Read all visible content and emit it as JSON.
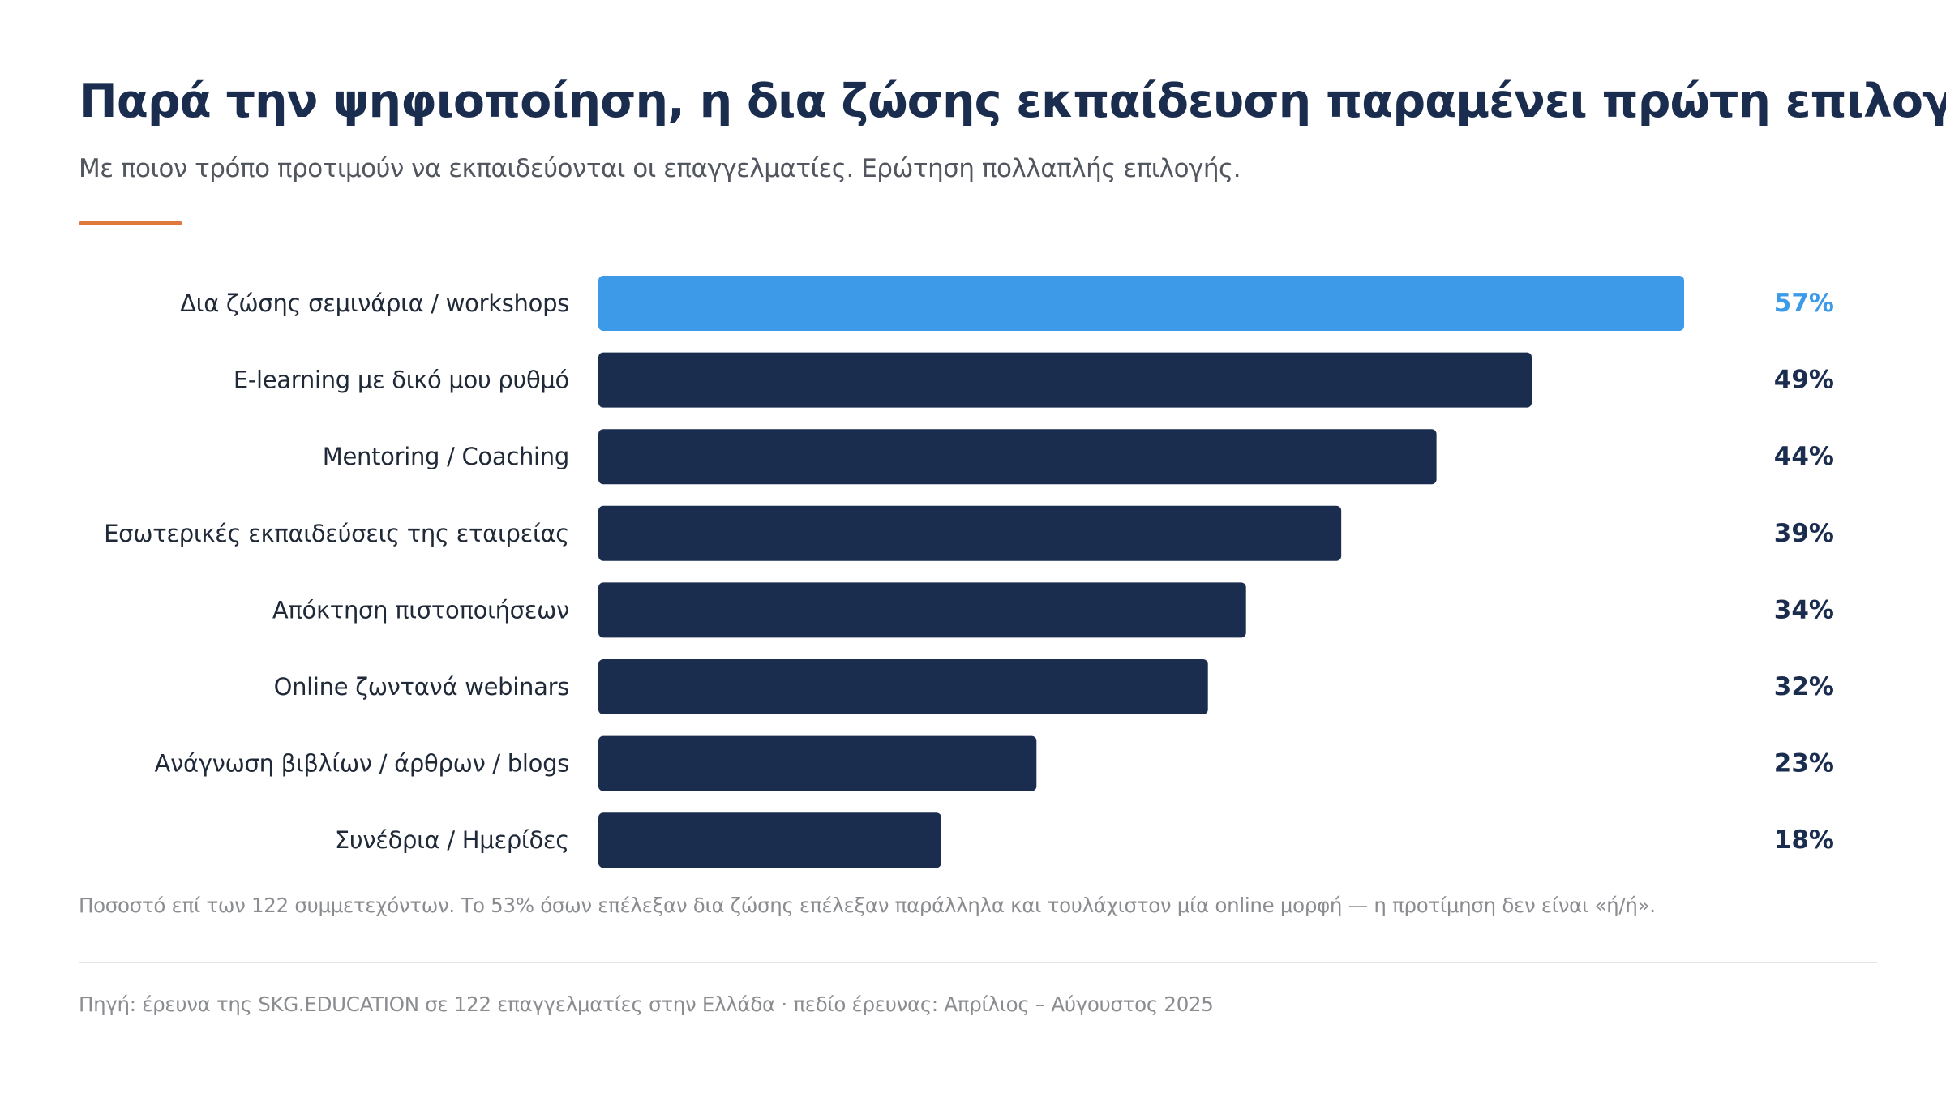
{
  "header": {
    "title": "Παρά την ψηφιοποίηση, η δια ζώσης εκπαίδευση παραμένει πρώτη επιλογή",
    "subtitle": "Με ποιον τρόπο προτιμούν να εκπαιδεύονται οι επαγγελματίες. Ερώτηση πολλαπλής επιλογής."
  },
  "chart_data": {
    "type": "bar",
    "orientation": "horizontal",
    "categories": [
      "Δια ζώσης σεμινάρια / workshops",
      "E-learning με δικό μου ρυθμό",
      "Mentoring / Coaching",
      "Εσωτερικές εκπαιδεύσεις της εταιρείας",
      "Απόκτηση πιστοποιήσεων",
      "Online ζωντανά webinars",
      "Ανάγνωση βιβλίων / άρθρων / blogs",
      "Συνέδρια / Ημερίδες"
    ],
    "values": [
      57,
      49,
      44,
      39,
      34,
      32,
      23,
      18
    ],
    "value_labels": [
      "57%",
      "49%",
      "44%",
      "39%",
      "34%",
      "32%",
      "23%",
      "18%"
    ],
    "unit": "%",
    "xlim": [
      0,
      57
    ],
    "grid": false,
    "legend": "none",
    "highlight_index": 0,
    "colors": {
      "highlight": "#3d9ae8",
      "default": "#1b2d4f"
    }
  },
  "footnote": "Ποσοστό επί των 122 συμμετεχόντων. Το 53% όσων επέλεξαν δια ζώσης επέλεξαν παράλληλα και τουλάχιστον μία online μορφή — η προτίμηση δεν είναι «ή/ή».",
  "source": "Πηγή: έρευνα της SKG.EDUCATION σε 122 επαγγελματίες στην Ελλάδα · πεδίο έρευνας: Απρίλιος – Αύγουστος 2025",
  "colors": {
    "title": "#1b2d4f",
    "accent_rule": "#e07a3c",
    "label_text": "#1f2937",
    "muted_text": "#8a8c90"
  }
}
